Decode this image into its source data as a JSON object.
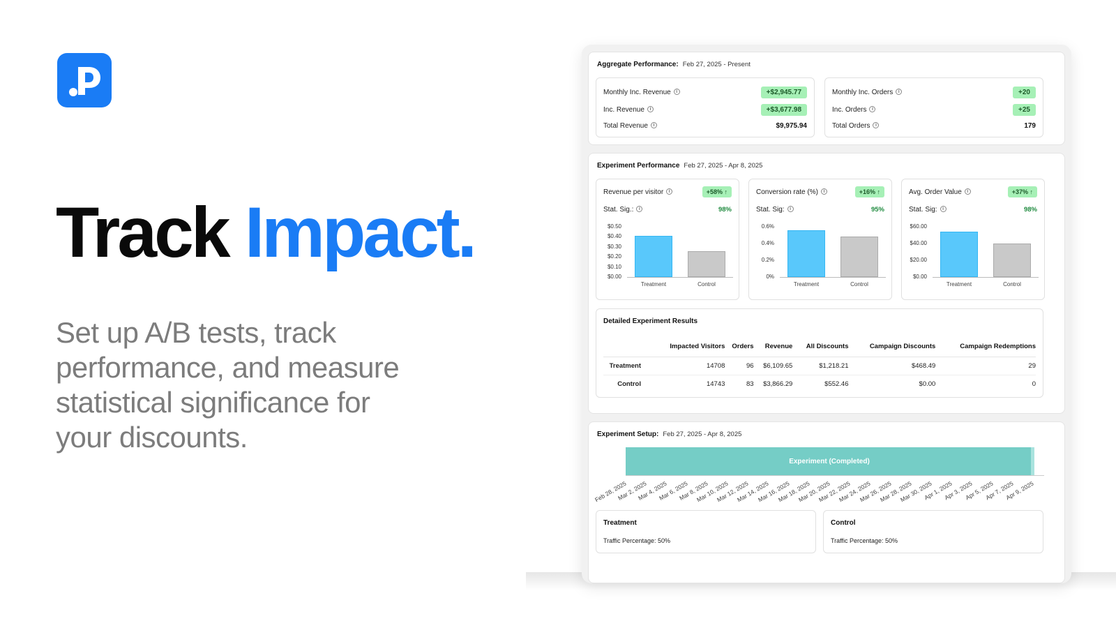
{
  "hero": {
    "headline_1": "Track",
    "headline_2": "Impact.",
    "subtitle": "Set up A/B tests, track performance, and measure statistical significance for your discounts.",
    "logo_icon": "music-note-p-logo",
    "accent_color": "#1a7cf5"
  },
  "aggregate": {
    "title": "Aggregate Performance:",
    "date_range": "Feb 27, 2025 - Present",
    "revenue": [
      {
        "label": "Monthly Inc. Revenue",
        "value": "+$2,945.77",
        "highlight": true
      },
      {
        "label": "Inc. Revenue",
        "value": "+$3,677.98",
        "highlight": true
      },
      {
        "label": "Total Revenue",
        "value": "$9,975.94",
        "highlight": false
      }
    ],
    "orders": [
      {
        "label": "Monthly Inc. Orders",
        "value": "+20",
        "highlight": true
      },
      {
        "label": "Inc. Orders",
        "value": "+25",
        "highlight": true
      },
      {
        "label": "Total Orders",
        "value": "179",
        "highlight": false
      }
    ]
  },
  "experiment": {
    "title": "Experiment Performance",
    "date_range": "Feb 27, 2025 - Apr 8, 2025",
    "stat_sig_label_1": "Stat. Sig.:",
    "stat_sig_label_2": "Stat. Sig:",
    "stat_sig_label_3": "Stat. Sig:",
    "metrics": [
      {
        "label": "Revenue per visitor",
        "lift": "+58% ↑",
        "sig": "98%"
      },
      {
        "label": "Conversion rate (%)",
        "lift": "+16% ↑",
        "sig": "95%"
      },
      {
        "label": "Avg. Order Value",
        "lift": "+37% ↑",
        "sig": "98%"
      }
    ],
    "x_labels": [
      "Treatment",
      "Control"
    ]
  },
  "chart_data": [
    {
      "type": "bar",
      "title": "Revenue per visitor",
      "categories": [
        "Treatment",
        "Control"
      ],
      "values": [
        0.41,
        0.26
      ],
      "yticks": [
        "$0.50",
        "$0.40",
        "$0.30",
        "$0.20",
        "$0.10",
        "$0.00"
      ],
      "ylim": [
        0,
        0.5
      ],
      "colors": [
        "#59c8fb",
        "#c9c9c9"
      ]
    },
    {
      "type": "bar",
      "title": "Conversion rate (%)",
      "categories": [
        "Treatment",
        "Control"
      ],
      "values": [
        0.65,
        0.56
      ],
      "yticks": [
        "0.6%",
        "0.4%",
        "0.2%",
        "0%"
      ],
      "ylim": [
        0,
        0.7
      ],
      "colors": [
        "#59c8fb",
        "#c9c9c9"
      ]
    },
    {
      "type": "bar",
      "title": "Avg. Order Value",
      "categories": [
        "Treatment",
        "Control"
      ],
      "values": [
        63.6,
        46.6
      ],
      "yticks": [
        "$60.00",
        "$40.00",
        "$20.00",
        "$0.00"
      ],
      "ylim": [
        0,
        70
      ],
      "colors": [
        "#59c8fb",
        "#c9c9c9"
      ]
    }
  ],
  "details": {
    "title": "Detailed Experiment Results",
    "columns": [
      "Impacted Visitors",
      "Orders",
      "Revenue",
      "All Discounts",
      "Campaign Discounts",
      "Campaign Redemptions"
    ],
    "rows": [
      {
        "label": "Treatment",
        "cells": [
          "14708",
          "96",
          "$6,109.65",
          "$1,218.21",
          "$468.49",
          "29"
        ]
      },
      {
        "label": "Control",
        "cells": [
          "14743",
          "83",
          "$3,866.29",
          "$552.46",
          "$0.00",
          "0"
        ]
      }
    ]
  },
  "setup": {
    "title": "Experiment Setup:",
    "date_range": "Feb 27, 2025 - Apr 8, 2025",
    "bar_label": "Experiment (Completed)",
    "dates": [
      "Feb 28, 2025",
      "Mar 2, 2025",
      "Mar 4, 2025",
      "Mar 6, 2025",
      "Mar 8, 2025",
      "Mar 10, 2025",
      "Mar 12, 2025",
      "Mar 14, 2025",
      "Mar 16, 2025",
      "Mar 18, 2025",
      "Mar 20, 2025",
      "Mar 22, 2025",
      "Mar 24, 2025",
      "Mar 26, 2025",
      "Mar 28, 2025",
      "Mar 30, 2025",
      "Apr 1, 2025",
      "Apr 3, 2025",
      "Apr 5, 2025",
      "Apr 7, 2025",
      "Apr 9, 2025"
    ],
    "variants": [
      {
        "name": "Treatment",
        "traffic": "Traffic Percentage: 50%"
      },
      {
        "name": "Control",
        "traffic": "Traffic Percentage: 50%"
      }
    ]
  }
}
